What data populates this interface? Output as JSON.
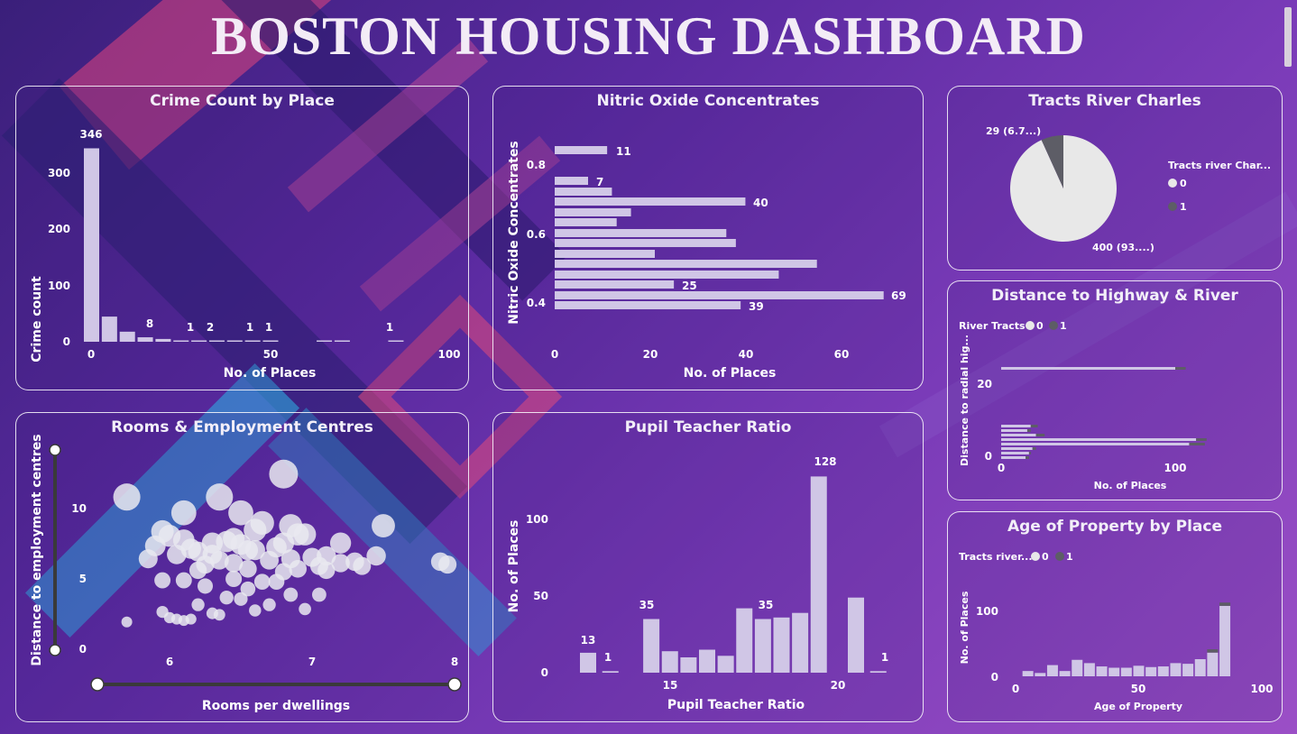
{
  "dashboard": {
    "title": "BOSTON HOUSING DASHBOARD"
  },
  "colors": {
    "bar": "#d0c6e6",
    "dark": "#5d5d66",
    "pie_light": "#e8e8e8",
    "dot": "#e9e9f0"
  },
  "panels": {
    "crime": {
      "title": "Crime Count by Place",
      "xlabel": "No. of Places",
      "ylabel": "Crime count",
      "yticks": [
        "0",
        "100",
        "200",
        "300"
      ],
      "xticks": [
        "0",
        "50",
        "100"
      ],
      "labels": [
        "346",
        "8",
        "1",
        "2",
        "1",
        "1",
        "1"
      ]
    },
    "nitric": {
      "title": "Nitric Oxide Concentrates",
      "xlabel": "No. of Places",
      "ylabel": "Nitric Oxide Concentrates",
      "yticks": [
        "0.4",
        "0.6",
        "0.8"
      ],
      "xticks": [
        "0",
        "20",
        "40",
        "60"
      ],
      "labels": [
        "11",
        "7",
        "40",
        "25",
        "69",
        "39"
      ]
    },
    "river": {
      "title": "Tracts River Charles",
      "legend_title": "Tracts river Char...",
      "legend_items": [
        "0",
        "1"
      ],
      "label_small": "29 (6.7...)",
      "label_big": "400 (93....)"
    },
    "highway": {
      "title": "Distance to Highway & River",
      "legend_title": "River Tracts",
      "legend_items": [
        "0",
        "1"
      ],
      "ylabel": "Distance to radial hig...",
      "xlabel": "No. of Places",
      "yticks": [
        "0",
        "20"
      ],
      "xticks": [
        "0",
        "100"
      ]
    },
    "rooms": {
      "title": "Rooms & Employment Centres",
      "xlabel": "Rooms per dwellings",
      "ylabel": "Distance to employment centres",
      "yticks": [
        "0",
        "5",
        "10"
      ],
      "xticks": [
        "6",
        "7",
        "8"
      ]
    },
    "pupil": {
      "title": "Pupil Teacher Ratio",
      "xlabel": "Pupil Teacher Ratio",
      "ylabel": "No. of Places",
      "yticks": [
        "0",
        "50",
        "100"
      ],
      "xticks": [
        "15",
        "20"
      ],
      "labels": [
        "13",
        "1",
        "35",
        "35",
        "128",
        "1"
      ]
    },
    "age": {
      "title": "Age of Property by Place",
      "legend_title": "Tracts river...",
      "legend_items": [
        "0",
        "1"
      ],
      "ylabel": "No. of Places",
      "xlabel": "Age of Property",
      "yticks": [
        "0",
        "100"
      ],
      "xticks": [
        "0",
        "50",
        "100"
      ]
    }
  },
  "chart_data": [
    {
      "type": "bar",
      "title": "Crime Count by Place",
      "xlabel": "No. of Places",
      "ylabel": "Crime count",
      "x": [
        0,
        5,
        10,
        15,
        20,
        25,
        30,
        35,
        40,
        45,
        50,
        65,
        70,
        85
      ],
      "values": [
        346,
        45,
        18,
        8,
        5,
        1,
        2,
        1,
        1,
        1,
        1,
        1,
        1,
        1
      ],
      "xlim": [
        0,
        100
      ],
      "ylim": [
        0,
        350
      ]
    },
    {
      "type": "bar",
      "title": "Nitric Oxide Concentrates",
      "xlabel": "No. of Places",
      "ylabel": "Nitric Oxide Concentrates",
      "orientation": "horizontal",
      "categories": [
        0.85,
        0.75,
        0.72,
        0.69,
        0.66,
        0.63,
        0.6,
        0.57,
        0.54,
        0.51,
        0.48,
        0.45,
        0.42,
        0.39
      ],
      "values": [
        11,
        7,
        12,
        40,
        16,
        13,
        36,
        38,
        21,
        55,
        47,
        25,
        69,
        39
      ],
      "xlim": [
        0,
        70
      ]
    },
    {
      "type": "pie",
      "title": "Tracts River Charles",
      "categories": [
        "0",
        "1"
      ],
      "values": [
        400,
        29
      ]
    },
    {
      "type": "bar",
      "title": "Distance to Highway & River",
      "orientation": "horizontal",
      "xlabel": "No. of Places",
      "ylabel": "Distance to radial hig...",
      "categories": [
        24,
        8,
        7,
        6,
        5,
        4,
        3,
        2,
        1
      ],
      "series": [
        {
          "name": "0",
          "values": [
            100,
            17,
            15,
            20,
            112,
            108,
            18,
            16,
            14
          ]
        },
        {
          "name": "1",
          "values": [
            6,
            4,
            2,
            5,
            6,
            9,
            2,
            1,
            2
          ]
        }
      ],
      "xlim": [
        0,
        120
      ]
    },
    {
      "type": "scatter",
      "title": "Rooms & Employment Centres",
      "xlabel": "Rooms per dwellings",
      "ylabel": "Distance to employment centres",
      "x": [
        5.7,
        6.1,
        5.95,
        6.1,
        6.35,
        6.5,
        6.65,
        6.8,
        6.85,
        6.95,
        7.2,
        7.5,
        7.9,
        5.9,
        6.0,
        6.15,
        6.2,
        6.3,
        6.35,
        6.4,
        6.45,
        6.5,
        6.55,
        6.6,
        6.7,
        6.75,
        6.8,
        6.85,
        6.9,
        7.05,
        7.1,
        7.2,
        7.35,
        7.45,
        5.85,
        6.05,
        6.25,
        6.3,
        6.45,
        6.55,
        6.6,
        6.8,
        6.9,
        7.0,
        7.1,
        7.3,
        7.95,
        5.95,
        6.1,
        6.2,
        6.55,
        6.65,
        6.75,
        6.85,
        5.7,
        5.95,
        6.0,
        6.05,
        6.1,
        6.15,
        6.2,
        6.3,
        6.5,
        6.6,
        6.7,
        6.95,
        7.05,
        6.45,
        6.4,
        6.25,
        6.35
      ],
      "y": [
        10.6,
        9.5,
        8.2,
        7.6,
        10.6,
        9.5,
        8.8,
        12.2,
        8.6,
        8.0,
        7.4,
        8.6,
        6.1,
        7.2,
        7.9,
        7.0,
        6.8,
        7.4,
        6.2,
        7.5,
        7.7,
        7.3,
        6.9,
        8.3,
        6.2,
        7.1,
        7.4,
        6.3,
        8.0,
        5.8,
        6.5,
        6.0,
        5.8,
        6.5,
        6.3,
        6.6,
        5.9,
        6.6,
        6.0,
        5.6,
        6.9,
        5.4,
        5.6,
        6.4,
        5.5,
        6.1,
        5.9,
        4.8,
        4.8,
        5.5,
        4.2,
        4.7,
        4.7,
        3.8,
        1.9,
        2.6,
        2.2,
        2.1,
        2.0,
        2.1,
        3.1,
        2.5,
        3.5,
        2.7,
        3.1,
        2.8,
        3.8,
        4.9,
        3.6,
        4.4,
        2.4
      ],
      "xlim": [
        5.5,
        8
      ],
      "ylim": [
        0,
        13
      ]
    },
    {
      "type": "bar",
      "title": "Pupil Teacher Ratio",
      "xlabel": "Pupil Teacher Ratio",
      "ylabel": "No. of Places",
      "x": [
        13,
        13.6,
        14.7,
        15.2,
        15.7,
        16.2,
        16.7,
        17.2,
        17.7,
        18.2,
        18.7,
        19.2,
        20.2,
        20.8
      ],
      "values": [
        13,
        1,
        35,
        14,
        10,
        15,
        11,
        42,
        35,
        36,
        39,
        128,
        49,
        1
      ],
      "ylim": [
        0,
        140
      ]
    },
    {
      "type": "bar",
      "title": "Age of Property by Place",
      "xlabel": "Age of Property",
      "ylabel": "No. of Places",
      "x": [
        5,
        10,
        15,
        20,
        25,
        30,
        35,
        40,
        45,
        50,
        55,
        60,
        65,
        70,
        75,
        80,
        85,
        90,
        95
      ],
      "series": [
        {
          "name": "0",
          "values": [
            8,
            5,
            17,
            8,
            25,
            20,
            15,
            13,
            13,
            16,
            14,
            15,
            20,
            19,
            26,
            36,
            107,
            0,
            0
          ]
        },
        {
          "name": "1",
          "values": [
            0,
            0,
            0,
            0,
            0,
            0,
            0,
            0,
            0,
            0,
            0,
            0,
            0,
            0,
            0,
            5,
            5,
            0,
            0
          ]
        }
      ],
      "xlim": [
        0,
        100
      ],
      "ylim": [
        0,
        115
      ]
    }
  ]
}
